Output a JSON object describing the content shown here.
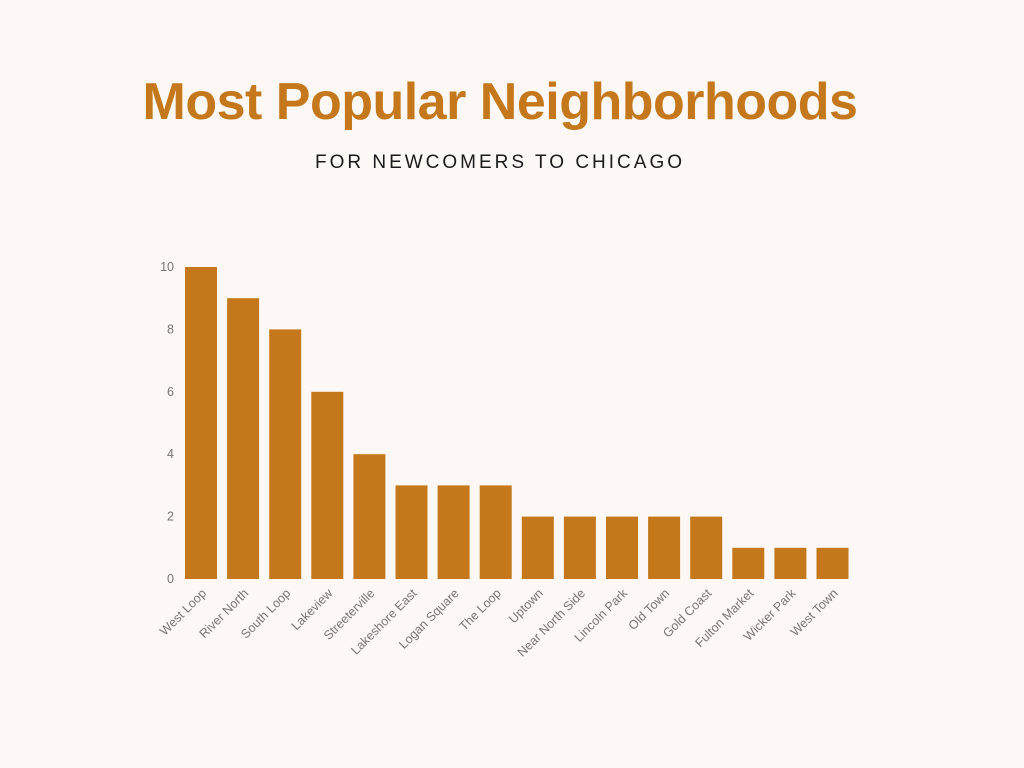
{
  "title": "Most Popular Neighborhoods",
  "subtitle": "FOR NEWCOMERS TO CHICAGO",
  "colors": {
    "background": "#fdf8f5",
    "accent": "#c4781b",
    "axis_text": "#7a7370"
  },
  "chart_data": {
    "type": "bar",
    "categories": [
      "West Loop",
      "River North",
      "South Loop",
      "Lakeview",
      "Streeterville",
      "Lakeshore East",
      "Logan Square",
      "The Loop",
      "Uptown",
      "Near North Side",
      "Lincoln Park",
      "Old Town",
      "Gold Coast",
      "Fulton Market",
      "Wicker Park",
      "West Town"
    ],
    "values": [
      10,
      9,
      8,
      6,
      4,
      3,
      3,
      3,
      2,
      2,
      2,
      2,
      2,
      1,
      1,
      1
    ],
    "yticks": [
      0,
      2,
      4,
      6,
      8,
      10
    ],
    "ylim": [
      0,
      10
    ],
    "grid": false,
    "legend": "none"
  }
}
